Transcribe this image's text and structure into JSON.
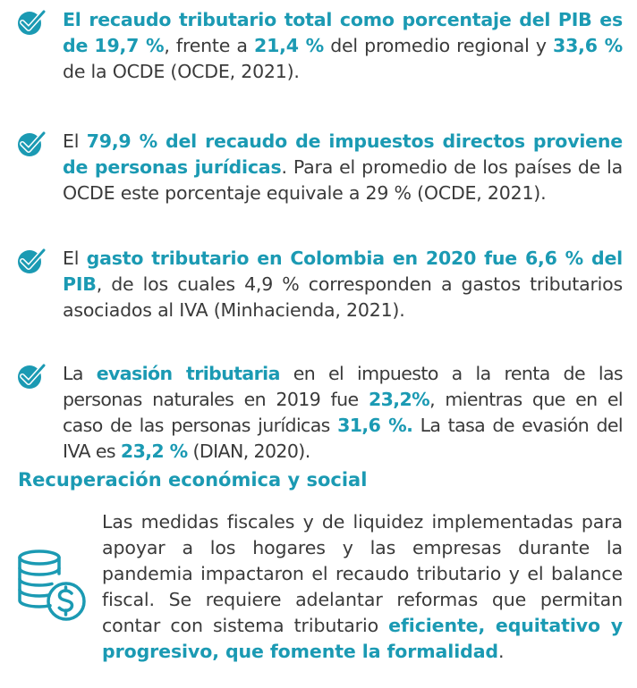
{
  "colors": {
    "accent": "#1b9ab3",
    "text": "#3a3a3a"
  },
  "bullets": [
    {
      "icon": "check-icon",
      "segments": [
        {
          "text": "El recaudo tributario total como porcentaje del PIB es de",
          "hl": true
        },
        {
          "text": " "
        },
        {
          "text": "19,7 %",
          "hl": true
        },
        {
          "text": ", frente a "
        },
        {
          "text": "21,4 %",
          "hl": true
        },
        {
          "text": " del promedio regional y "
        },
        {
          "text": "33,6 %",
          "hl": true
        },
        {
          "text": " de la OCDE (OCDE, 2021)."
        }
      ]
    },
    {
      "icon": "check-icon",
      "segments": [
        {
          "text": "El "
        },
        {
          "text": "79,9 % del recaudo de impuestos directos proviene de personas jurídicas",
          "hl": true
        },
        {
          "text": ". Para el promedio de los países de la OCDE este porcentaje equivale a 29 % (OCDE, 2021)."
        }
      ]
    },
    {
      "icon": "check-icon",
      "segments": [
        {
          "text": "El "
        },
        {
          "text": "gasto tributario en Colombia en 2020 fue 6,6 % del PIB",
          "hl": true
        },
        {
          "text": ", de los cuales 4,9 % corresponden a gastos tributarios asociados al IVA (Minhacienda, 2021)."
        }
      ]
    },
    {
      "icon": "check-icon",
      "segments": [
        {
          "text": "La "
        },
        {
          "text": "evasión tributaria",
          "hl": true
        },
        {
          "text": " en el impuesto a la renta de las personas naturales en 2019 fue "
        },
        {
          "text": "23,2%",
          "hl": true
        },
        {
          "text": ", mientras que en el caso de las personas jurídicas "
        },
        {
          "text": "31,6 %.",
          "hl": true
        },
        {
          "text": " La tasa de evasión del IVA es "
        },
        {
          "text": "23,2 %",
          "hl": true
        },
        {
          "text": " (DIAN, 2020)."
        }
      ]
    }
  ],
  "section": {
    "title": "Recuperación económica y social",
    "icon": "money-stack-icon",
    "segments": [
      {
        "text": "Las medidas fiscales y de liquidez implementadas para apoyar a los hogares y las empresas durante la pandemia impactaron el recaudo tributario y el balance fiscal. Se requiere adelantar reformas que permitan contar con sistema tributario "
      },
      {
        "text": "eficiente, equitativo y progresivo, que fomente la formalidad",
        "hl": true
      },
      {
        "text": "."
      }
    ]
  }
}
